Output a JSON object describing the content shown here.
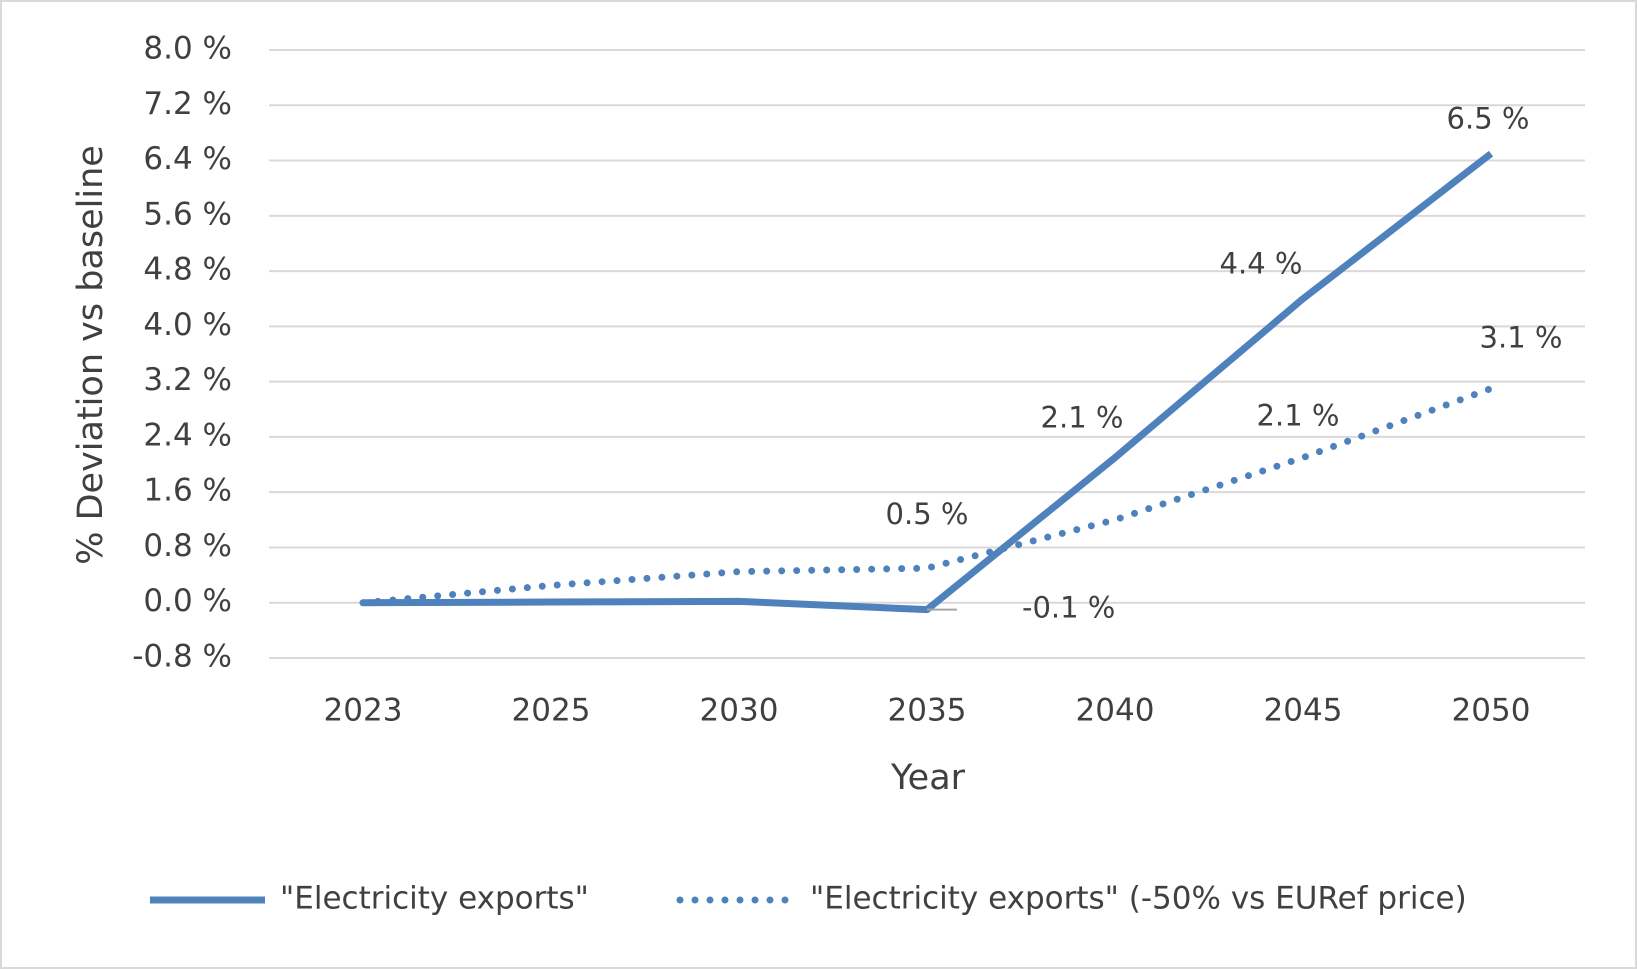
{
  "chart_data": {
    "type": "line",
    "categories": [
      "2023",
      "2025",
      "2030",
      "2035",
      "2040",
      "2045",
      "2050"
    ],
    "series": [
      {
        "name": "\"Electricity exports\"",
        "color": "#4f81bd",
        "style": "solid",
        "values": [
          0,
          0.01,
          0.02,
          -0.1,
          2.1,
          4.4,
          6.5
        ],
        "value_labels": [
          null,
          null,
          null,
          "-0.1 %",
          "2.1 %",
          "4.4 %",
          "6.5 %"
        ]
      },
      {
        "name": "\"Electricity exports\" (-50% vs EURef price)",
        "color": "#4f81bd",
        "style": "dotted",
        "values": [
          0,
          0.25,
          0.45,
          0.5,
          1.2,
          2.1,
          3.1
        ],
        "value_labels": [
          null,
          null,
          null,
          "0.5 %",
          null,
          "2.1 %",
          "3.1 %"
        ]
      }
    ],
    "xlabel": "Year",
    "ylabel": "% Deviation vs baseline",
    "ylim": [
      -0.8,
      8.0
    ],
    "yticks": [
      {
        "value": -0.8,
        "label": "-0.8 %"
      },
      {
        "value": 0,
        "label": "0.0 %"
      },
      {
        "value": 0.8,
        "label": "0.8 %"
      },
      {
        "value": 1.6,
        "label": "1.6 %"
      },
      {
        "value": 2.4,
        "label": "2.4 %"
      },
      {
        "value": 3.2,
        "label": "3.2 %"
      },
      {
        "value": 4.0,
        "label": "4.0 %"
      },
      {
        "value": 4.8,
        "label": "4.8 %"
      },
      {
        "value": 5.6,
        "label": "5.6 %"
      },
      {
        "value": 6.4,
        "label": "6.4 %"
      },
      {
        "value": 7.2,
        "label": "7.2 %"
      },
      {
        "value": 8.0,
        "label": "8.0 %"
      }
    ],
    "grid": true,
    "legend": "bottom"
  }
}
